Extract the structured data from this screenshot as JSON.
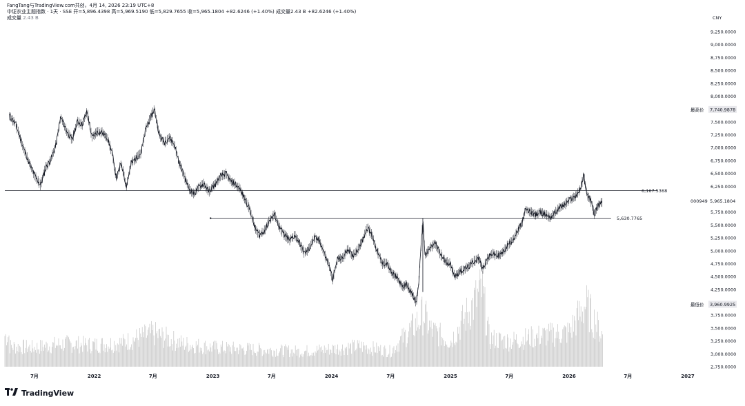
{
  "header": {
    "line1": "FangTang与TradingView.com共创，4月 14, 2026 23:19 UTC+8",
    "symbol": "中证农业主题指数 · 1天 · SSE",
    "open_label": "开",
    "open_value": "=5,896.4398",
    "high_label": "高",
    "high_value": "=5,969.5190",
    "low_label": "低",
    "low_value": "=5,829.7655",
    "close_label": "收",
    "close_value": "=5,965.1804",
    "change": "+82.6246 (+1.40%)",
    "volume_label": "成交量",
    "volume_value": "2.43 B",
    "volume_change": "+82.6246 (+1.40%)",
    "volume_row_label": "成交量",
    "volume_row_value": "2.43 B"
  },
  "currency": "CNY",
  "tags": {
    "high_label": "最高价",
    "high_value": "7,740.9878",
    "low_label": "最低价",
    "low_value": "3,960.9925",
    "symbol_code": "000949",
    "last_value": "5,965.1804",
    "line1_value": "6,167.5368",
    "line2_value": "5,630.7765"
  },
  "footer": {
    "brand": "TradingView"
  },
  "colors": {
    "series": "#131722",
    "volume": "#c4c4c4",
    "hline": "#131722",
    "grid": "#ffffff"
  },
  "chart_data": {
    "type": "line",
    "y_ticks": [
      "9,250.0000",
      "9,000.0000",
      "8,750.0000",
      "8,500.0000",
      "8,250.0000",
      "8,000.0000",
      "7,750.0000",
      "7,500.0000",
      "7,250.0000",
      "7,000.0000",
      "6,750.0000",
      "6,500.0000",
      "6,250.0000",
      "6,000.0000",
      "5,750.0000",
      "5,500.0000",
      "5,250.0000",
      "5,000.0000",
      "4,750.0000",
      "4,500.0000",
      "4,250.0000",
      "4,000.0000",
      "3,750.0000",
      "3,500.0000",
      "3,250.0000",
      "3,000.0000",
      "2,750.0000"
    ],
    "x_ticks": [
      "7月",
      "2022",
      "7月",
      "2023",
      "7月",
      "2024",
      "7月",
      "2025",
      "7月",
      "2026",
      "7月",
      "2027"
    ],
    "ylim": [
      2700,
      9350
    ],
    "series": [
      {
        "values": [
          [
            "2021-04-15",
            7620
          ],
          [
            "2021-05-05",
            7450
          ],
          [
            "2021-05-25",
            7050
          ],
          [
            "2021-06-15",
            6700
          ],
          [
            "2021-07-05",
            6420
          ],
          [
            "2021-07-20",
            6270
          ],
          [
            "2021-08-05",
            6620
          ],
          [
            "2021-08-20",
            6760
          ],
          [
            "2021-09-05",
            7050
          ],
          [
            "2021-09-20",
            7600
          ],
          [
            "2021-10-10",
            7300
          ],
          [
            "2021-10-25",
            7150
          ],
          [
            "2021-11-10",
            7500
          ],
          [
            "2021-11-25",
            7450
          ],
          [
            "2021-12-10",
            7700
          ],
          [
            "2021-12-25",
            7200
          ],
          [
            "2022-01-10",
            7300
          ],
          [
            "2022-01-25",
            7300
          ],
          [
            "2022-02-10",
            7200
          ],
          [
            "2022-02-25",
            6900
          ],
          [
            "2022-03-10",
            6400
          ],
          [
            "2022-03-25",
            6700
          ],
          [
            "2022-04-10",
            6250
          ],
          [
            "2022-04-25",
            6700
          ],
          [
            "2022-05-10",
            6800
          ],
          [
            "2022-05-25",
            6900
          ],
          [
            "2022-06-10",
            7400
          ],
          [
            "2022-06-25",
            7600
          ],
          [
            "2022-07-05",
            7750
          ],
          [
            "2022-07-20",
            7250
          ],
          [
            "2022-08-05",
            7100
          ],
          [
            "2022-08-20",
            7200
          ],
          [
            "2022-09-05",
            7050
          ],
          [
            "2022-09-20",
            6700
          ],
          [
            "2022-10-05",
            6450
          ],
          [
            "2022-10-20",
            6200
          ],
          [
            "2022-11-05",
            6100
          ],
          [
            "2022-11-20",
            6250
          ],
          [
            "2022-12-05",
            6300
          ],
          [
            "2022-12-20",
            6150
          ],
          [
            "2023-01-10",
            6300
          ],
          [
            "2023-01-25",
            6450
          ],
          [
            "2023-02-10",
            6500
          ],
          [
            "2023-02-25",
            6350
          ],
          [
            "2023-03-10",
            6300
          ],
          [
            "2023-03-25",
            6200
          ],
          [
            "2023-04-10",
            6000
          ],
          [
            "2023-04-25",
            5800
          ],
          [
            "2023-05-10",
            5450
          ],
          [
            "2023-05-25",
            5300
          ],
          [
            "2023-06-10",
            5400
          ],
          [
            "2023-06-25",
            5600
          ],
          [
            "2023-07-10",
            5700
          ],
          [
            "2023-07-25",
            5450
          ],
          [
            "2023-08-10",
            5300
          ],
          [
            "2023-08-25",
            5200
          ],
          [
            "2023-09-10",
            5300
          ],
          [
            "2023-09-25",
            5150
          ],
          [
            "2023-10-10",
            4950
          ],
          [
            "2023-10-25",
            5050
          ],
          [
            "2023-11-10",
            5250
          ],
          [
            "2023-11-25",
            5200
          ],
          [
            "2023-12-10",
            4950
          ],
          [
            "2023-12-25",
            4700
          ],
          [
            "2024-01-05",
            4450
          ],
          [
            "2024-01-20",
            4850
          ],
          [
            "2024-02-05",
            4850
          ],
          [
            "2024-02-20",
            5050
          ],
          [
            "2024-03-05",
            4900
          ],
          [
            "2024-03-20",
            5000
          ],
          [
            "2024-04-05",
            5200
          ],
          [
            "2024-04-20",
            5450
          ],
          [
            "2024-05-05",
            5300
          ],
          [
            "2024-05-20",
            5000
          ],
          [
            "2024-06-05",
            4750
          ],
          [
            "2024-06-20",
            4750
          ],
          [
            "2024-07-05",
            4550
          ],
          [
            "2024-07-20",
            4500
          ],
          [
            "2024-08-05",
            4300
          ],
          [
            "2024-08-20",
            4350
          ],
          [
            "2024-09-05",
            4150
          ],
          [
            "2024-09-18",
            3990
          ],
          [
            "2024-09-25",
            4350
          ],
          [
            "2024-10-08",
            5600
          ],
          [
            "2024-10-15",
            4900
          ],
          [
            "2024-10-30",
            5050
          ],
          [
            "2024-11-15",
            5150
          ],
          [
            "2024-11-30",
            4950
          ],
          [
            "2024-12-15",
            4800
          ],
          [
            "2024-12-30",
            4750
          ],
          [
            "2025-01-15",
            4500
          ],
          [
            "2025-01-30",
            4600
          ],
          [
            "2025-02-15",
            4650
          ],
          [
            "2025-02-28",
            4700
          ],
          [
            "2025-03-15",
            4800
          ],
          [
            "2025-03-30",
            4850
          ],
          [
            "2025-04-10",
            4650
          ],
          [
            "2025-04-25",
            4850
          ],
          [
            "2025-05-10",
            4950
          ],
          [
            "2025-05-25",
            4900
          ],
          [
            "2025-06-10",
            4950
          ],
          [
            "2025-06-25",
            5100
          ],
          [
            "2025-07-10",
            5200
          ],
          [
            "2025-07-25",
            5350
          ],
          [
            "2025-08-10",
            5550
          ],
          [
            "2025-08-20",
            5800
          ],
          [
            "2025-09-05",
            5750
          ],
          [
            "2025-09-20",
            5700
          ],
          [
            "2025-10-05",
            5750
          ],
          [
            "2025-10-20",
            5700
          ],
          [
            "2025-11-05",
            5650
          ],
          [
            "2025-11-20",
            5750
          ],
          [
            "2025-12-05",
            5850
          ],
          [
            "2025-12-20",
            5900
          ],
          [
            "2026-01-05",
            6000
          ],
          [
            "2026-01-20",
            6050
          ],
          [
            "2026-02-05",
            6200
          ],
          [
            "2026-02-15",
            6470
          ],
          [
            "2026-02-25",
            6100
          ],
          [
            "2026-03-10",
            5950
          ],
          [
            "2026-03-20",
            5700
          ],
          [
            "2026-03-28",
            5850
          ],
          [
            "2026-04-05",
            5900
          ],
          [
            "2026-04-14",
            5965
          ]
        ]
      }
    ],
    "volume_b": [
      [
        "2021-04-15",
        1.6
      ],
      [
        "2021-07-01",
        1.5
      ],
      [
        "2021-10-01",
        1.8
      ],
      [
        "2022-01-01",
        1.7
      ],
      [
        "2022-04-01",
        1.9
      ],
      [
        "2022-07-01",
        2.6
      ],
      [
        "2022-10-01",
        1.8
      ],
      [
        "2023-01-01",
        1.5
      ],
      [
        "2023-04-01",
        1.4
      ],
      [
        "2023-07-01",
        1.3
      ],
      [
        "2023-10-01",
        1.2
      ],
      [
        "2024-01-01",
        1.4
      ],
      [
        "2024-04-01",
        1.6
      ],
      [
        "2024-07-01",
        1.2
      ],
      [
        "2024-09-25",
        3.6
      ],
      [
        "2024-10-10",
        4.2
      ],
      [
        "2024-11-01",
        2.9
      ],
      [
        "2025-01-01",
        2.0
      ],
      [
        "2025-04-08",
        6.0
      ],
      [
        "2025-05-01",
        2.2
      ],
      [
        "2025-07-01",
        2.0
      ],
      [
        "2025-10-01",
        2.4
      ],
      [
        "2026-01-01",
        2.7
      ],
      [
        "2026-02-20",
        4.9
      ],
      [
        "2026-04-14",
        2.43
      ]
    ],
    "hlines": [
      {
        "value": 6167.5368,
        "from": "2021-04-01",
        "to": "2026-09-30"
      },
      {
        "value": 5630.7765,
        "from": "2022-12-25",
        "to": "2026-05-10"
      }
    ],
    "high": 7740.9878,
    "low": 3960.9925,
    "last": 5965.1804
  }
}
